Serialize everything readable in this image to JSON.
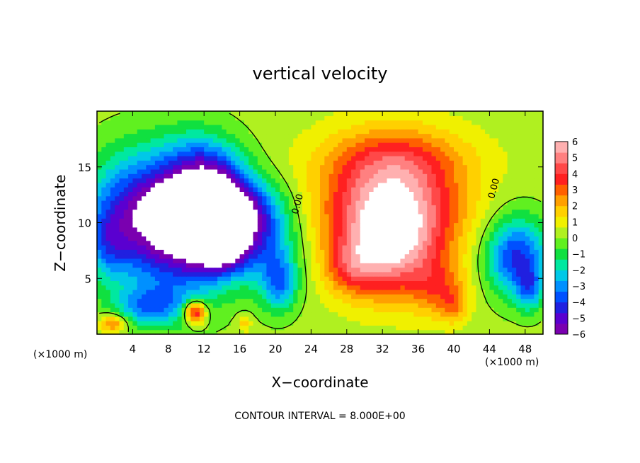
{
  "chart_data": {
    "type": "heatmap",
    "title": "vertical velocity",
    "xlabel": "X−coordinate",
    "ylabel": "Z−coordinate",
    "x_unit_left": "(×1000 m)",
    "x_unit_right": "(×1000 m)",
    "footer": "CONTOUR INTERVAL = 8.000E+00",
    "xlim": [
      0,
      50
    ],
    "ylim": [
      0,
      20
    ],
    "x_ticks": [
      4,
      8,
      12,
      16,
      20,
      24,
      28,
      32,
      36,
      40,
      44,
      48
    ],
    "x_tick_labels": [
      "4",
      "8",
      "12",
      "16",
      "20",
      "24",
      "28",
      "32",
      "36",
      "40",
      "44",
      "48"
    ],
    "y_ticks": [
      5,
      10,
      15
    ],
    "y_tick_labels": [
      "5",
      "10",
      "15"
    ],
    "colorbar": {
      "min": -6,
      "max": 6,
      "tick_values": [
        6,
        5,
        4,
        3,
        2,
        1,
        0,
        -1,
        -2,
        -3,
        -4,
        -5,
        -6
      ],
      "tick_labels": [
        "6",
        "5",
        "4",
        "3",
        "2",
        "1",
        "0",
        "−1",
        "−2",
        "−3",
        "−4",
        "−5",
        "−6"
      ],
      "colors": [
        "#7a00b0",
        "#5a00d0",
        "#2020e0",
        "#0050ff",
        "#0090ff",
        "#00c8e8",
        "#00e8a0",
        "#10e040",
        "#60f020",
        "#b0f020",
        "#f0f000",
        "#ffd000",
        "#ffa000",
        "#ff6000",
        "#ff2020",
        "#ff4848",
        "#ff8080",
        "#ffb0b0"
      ]
    },
    "contour_labels": [
      {
        "text": "0.00",
        "x": 22.8,
        "y": 11.6
      },
      {
        "text": "0.00",
        "x": 44.8,
        "y": 13.0
      }
    ],
    "background_value": 0.3,
    "features": [
      {
        "x": 4.0,
        "z": 10.5,
        "sx": 5.5,
        "sz": 5.5,
        "w": -4.8
      },
      {
        "x": 10.0,
        "z": 10.0,
        "sx": 5.0,
        "sz": 6.0,
        "w": -5.5
      },
      {
        "x": 13.5,
        "z": 10.5,
        "sx": 4.0,
        "sz": 4.5,
        "w": -5.0
      },
      {
        "x": 8.5,
        "z": 11.2,
        "sx": 2.0,
        "sz": 1.8,
        "w": -4.0
      },
      {
        "x": 14.0,
        "z": 8.0,
        "sx": 2.5,
        "sz": 2.0,
        "w": -4.0
      },
      {
        "x": 16.0,
        "z": 11.0,
        "sx": 4.5,
        "sz": 3.0,
        "w": -3.5
      },
      {
        "x": 19.0,
        "z": 8.0,
        "sx": 4.0,
        "sz": 4.0,
        "w": -2.5
      },
      {
        "x": 6.0,
        "z": 2.5,
        "sx": 4.0,
        "sz": 1.8,
        "w": -3.0
      },
      {
        "x": 12.0,
        "z": 15.0,
        "sx": 4.0,
        "sz": 3.0,
        "w": -1.8
      },
      {
        "x": 1.2,
        "z": 8.0,
        "sx": 2.0,
        "sz": 3.0,
        "w": -1.5
      },
      {
        "x": 20.5,
        "z": 4.5,
        "sx": 2.0,
        "sz": 2.5,
        "w": -3.0
      },
      {
        "x": 33.0,
        "z": 11.5,
        "sx": 7.5,
        "sz": 5.5,
        "w": 6.0
      },
      {
        "x": 33.0,
        "z": 7.0,
        "sx": 5.0,
        "sz": 4.0,
        "w": 3.0
      },
      {
        "x": 28.5,
        "z": 6.0,
        "sx": 3.0,
        "sz": 2.5,
        "w": 2.0
      },
      {
        "x": 38.5,
        "z": 4.0,
        "sx": 3.0,
        "sz": 2.5,
        "w": 2.0
      },
      {
        "x": 34.0,
        "z": 16.0,
        "sx": 9.0,
        "sz": 2.5,
        "w": 1.2
      },
      {
        "x": 47.0,
        "z": 7.0,
        "sx": 3.5,
        "sz": 3.5,
        "w": -4.5
      },
      {
        "x": 48.5,
        "z": 4.0,
        "sx": 1.5,
        "sz": 2.0,
        "w": -2.5
      },
      {
        "x": 11.0,
        "z": 2.0,
        "sx": 1.2,
        "sz": 1.0,
        "w": 5.0
      },
      {
        "x": 1.8,
        "z": 1.0,
        "sx": 1.5,
        "sz": 0.8,
        "w": 3.0
      },
      {
        "x": 16.5,
        "z": 1.0,
        "sx": 0.8,
        "sz": 0.8,
        "w": 1.5
      },
      {
        "x": 40.0,
        "z": 2.5,
        "sx": 1.5,
        "sz": 1.5,
        "w": 1.5
      }
    ]
  }
}
